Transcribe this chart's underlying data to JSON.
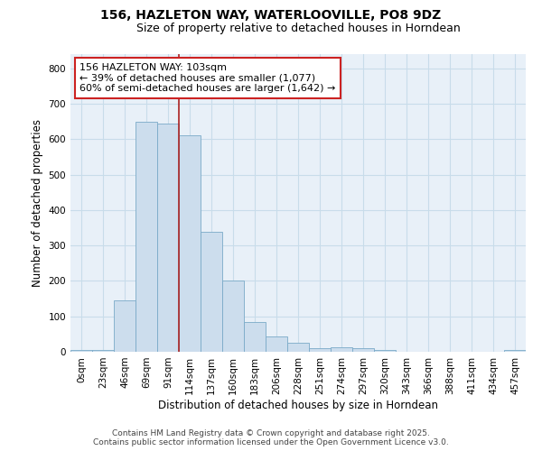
{
  "title_line1": "156, HAZLETON WAY, WATERLOOVILLE, PO8 9DZ",
  "title_line2": "Size of property relative to detached houses in Horndean",
  "xlabel": "Distribution of detached houses by size in Horndean",
  "ylabel": "Number of detached properties",
  "bar_labels": [
    "0sqm",
    "23sqm",
    "46sqm",
    "69sqm",
    "91sqm",
    "114sqm",
    "137sqm",
    "160sqm",
    "183sqm",
    "206sqm",
    "228sqm",
    "251sqm",
    "274sqm",
    "297sqm",
    "320sqm",
    "343sqm",
    "366sqm",
    "388sqm",
    "411sqm",
    "434sqm",
    "457sqm"
  ],
  "bar_values": [
    5,
    5,
    145,
    648,
    645,
    610,
    338,
    200,
    85,
    43,
    25,
    10,
    12,
    10,
    5,
    0,
    0,
    0,
    0,
    0,
    5
  ],
  "bar_color": "#ccdded",
  "bar_edge_color": "#7aaac8",
  "annotation_text_line1": "156 HAZLETON WAY: 103sqm",
  "annotation_text_line2": "← 39% of detached houses are smaller (1,077)",
  "annotation_text_line3": "60% of semi-detached houses are larger (1,642) →",
  "annotation_box_facecolor": "#ffffff",
  "annotation_box_edgecolor": "#cc2222",
  "vline_x_index": 4.5,
  "vline_color": "#aa2222",
  "ylim": [
    0,
    840
  ],
  "yticks": [
    0,
    100,
    200,
    300,
    400,
    500,
    600,
    700,
    800
  ],
  "grid_color": "#c8dcea",
  "background_color": "#e8f0f8",
  "footer_line1": "Contains HM Land Registry data © Crown copyright and database right 2025.",
  "footer_line2": "Contains public sector information licensed under the Open Government Licence v3.0.",
  "title_fontsize": 10,
  "subtitle_fontsize": 9,
  "axis_label_fontsize": 8.5,
  "tick_fontsize": 7.5,
  "annotation_fontsize": 8,
  "footer_fontsize": 6.5
}
